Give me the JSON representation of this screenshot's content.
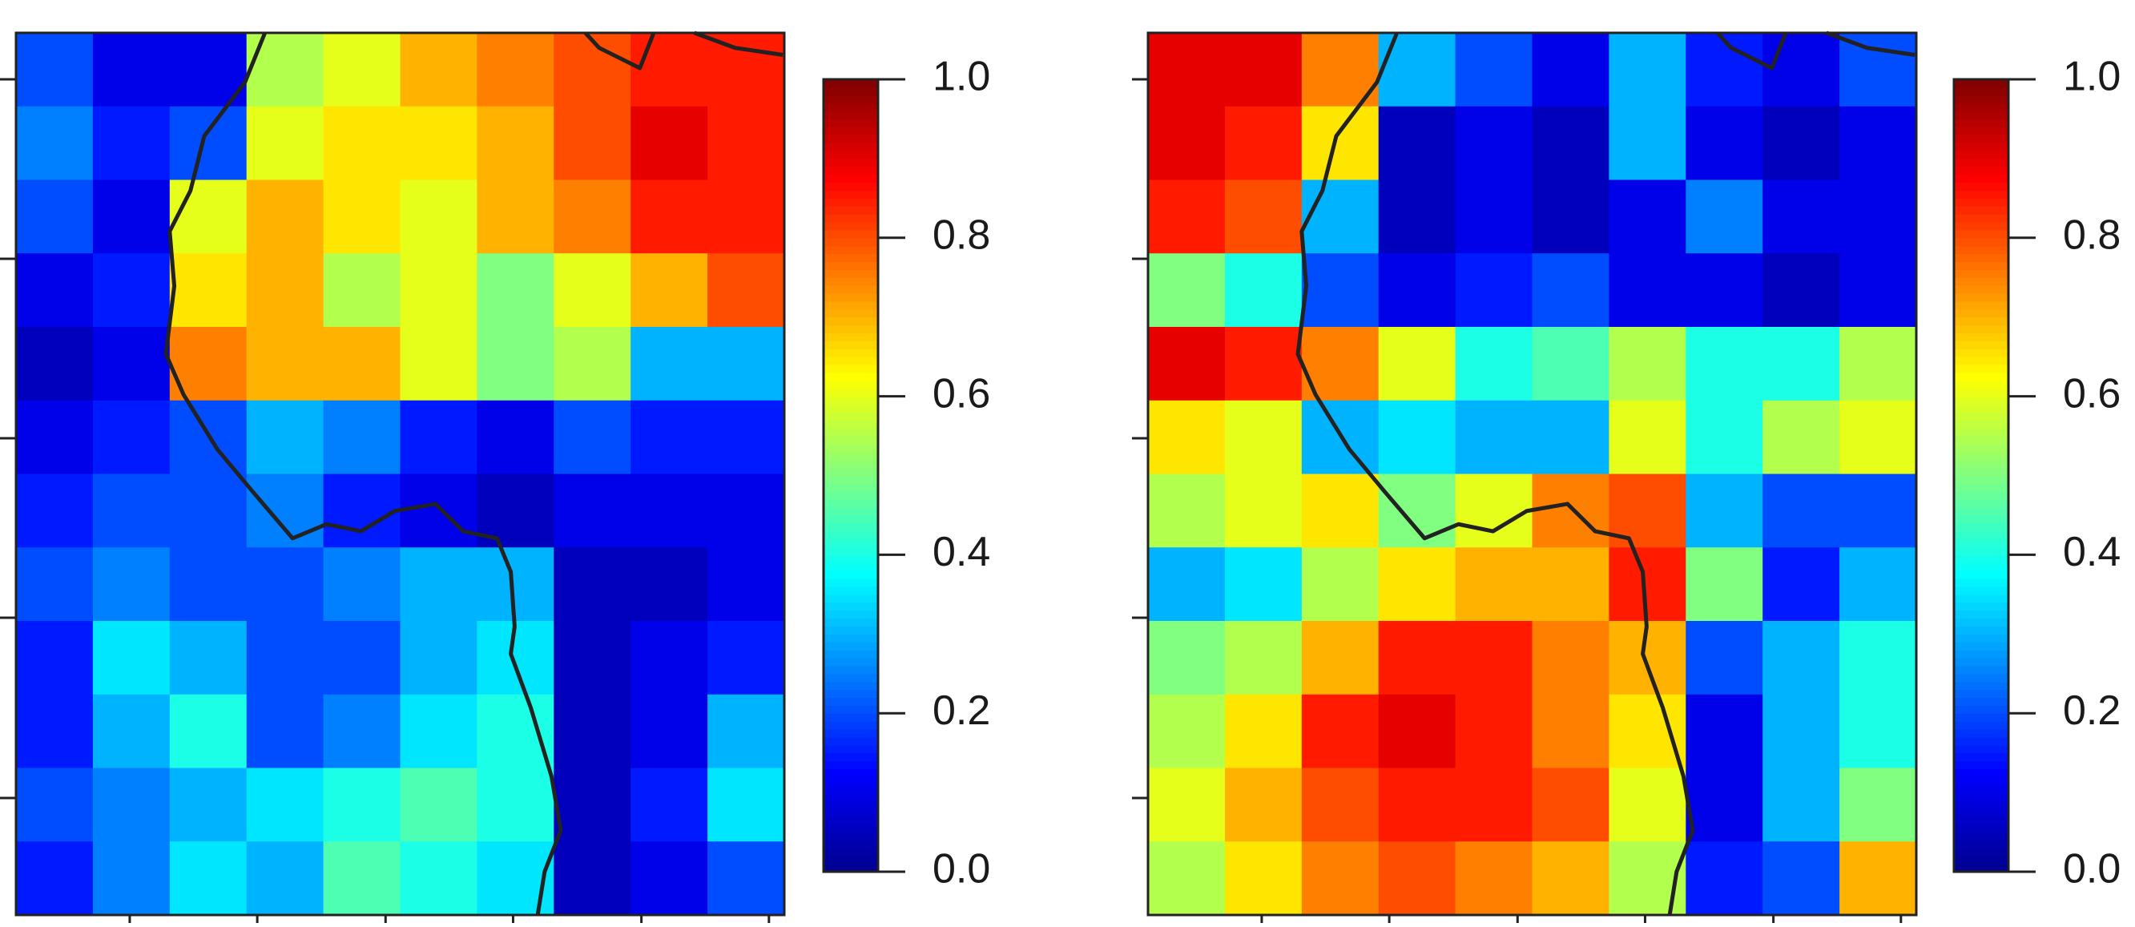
{
  "chart_data": [
    {
      "type": "heatmap",
      "zlim": [
        0,
        1
      ],
      "zticks": [
        {
          "value": 0,
          "label": "0.0"
        },
        0.2,
        0.4,
        0.6,
        0.8,
        {
          "value": 1,
          "label": "1.0"
        }
      ],
      "colors": [
        "#00008f",
        "#0000ff",
        "#0080ff",
        "#00ffff",
        "#80ff80",
        "#ffff00",
        "#ff8000",
        "#ff0000",
        "#800000"
      ],
      "values": [
        [
          0.2,
          0.1,
          0.1,
          0.55,
          0.6,
          0.7,
          0.75,
          0.8,
          0.85,
          0.85
        ],
        [
          0.25,
          0.15,
          0.2,
          0.6,
          0.65,
          0.65,
          0.7,
          0.8,
          0.9,
          0.85
        ],
        [
          0.2,
          0.1,
          0.6,
          0.7,
          0.65,
          0.6,
          0.7,
          0.75,
          0.85,
          0.85
        ],
        [
          0.1,
          0.15,
          0.65,
          0.7,
          0.55,
          0.6,
          0.5,
          0.6,
          0.7,
          0.8
        ],
        [
          0.05,
          0.1,
          0.75,
          0.7,
          0.7,
          0.6,
          0.5,
          0.55,
          0.3,
          0.3
        ],
        [
          0.1,
          0.15,
          0.2,
          0.3,
          0.25,
          0.15,
          0.1,
          0.2,
          0.15,
          0.15
        ],
        [
          0.15,
          0.2,
          0.2,
          0.25,
          0.15,
          0.1,
          0.05,
          0.1,
          0.1,
          0.1
        ],
        [
          0.2,
          0.25,
          0.2,
          0.2,
          0.25,
          0.3,
          0.3,
          0.05,
          0.05,
          0.1
        ],
        [
          0.15,
          0.35,
          0.3,
          0.2,
          0.2,
          0.3,
          0.35,
          0.05,
          0.1,
          0.15
        ],
        [
          0.15,
          0.3,
          0.4,
          0.2,
          0.25,
          0.35,
          0.4,
          0.05,
          0.1,
          0.3
        ],
        [
          0.2,
          0.25,
          0.3,
          0.35,
          0.4,
          0.45,
          0.4,
          0.05,
          0.15,
          0.35
        ],
        [
          0.15,
          0.25,
          0.35,
          0.3,
          0.45,
          0.4,
          0.35,
          0.05,
          0.1,
          0.2
        ]
      ]
    },
    {
      "type": "heatmap",
      "zlim": [
        0,
        1
      ],
      "zticks": [
        {
          "value": 0,
          "label": "0.0"
        },
        0.2,
        0.4,
        0.6,
        0.8,
        {
          "value": 1,
          "label": "1.0"
        }
      ],
      "colors": [
        "#00008f",
        "#0000ff",
        "#0080ff",
        "#00ffff",
        "#80ff80",
        "#ffff00",
        "#ff8000",
        "#ff0000",
        "#800000"
      ],
      "values": [
        [
          0.9,
          0.9,
          0.75,
          0.3,
          0.2,
          0.1,
          0.3,
          0.15,
          0.1,
          0.2
        ],
        [
          0.9,
          0.85,
          0.65,
          0.05,
          0.1,
          0.05,
          0.3,
          0.1,
          0.05,
          0.1
        ],
        [
          0.85,
          0.8,
          0.3,
          0.05,
          0.1,
          0.05,
          0.1,
          0.25,
          0.1,
          0.1
        ],
        [
          0.5,
          0.4,
          0.2,
          0.1,
          0.15,
          0.2,
          0.1,
          0.1,
          0.05,
          0.1
        ],
        [
          0.9,
          0.85,
          0.75,
          0.6,
          0.4,
          0.45,
          0.55,
          0.4,
          0.4,
          0.55
        ],
        [
          0.65,
          0.6,
          0.3,
          0.35,
          0.3,
          0.3,
          0.6,
          0.4,
          0.55,
          0.6
        ],
        [
          0.55,
          0.6,
          0.65,
          0.5,
          0.6,
          0.75,
          0.8,
          0.3,
          0.2,
          0.2
        ],
        [
          0.3,
          0.35,
          0.55,
          0.65,
          0.7,
          0.7,
          0.85,
          0.5,
          0.15,
          0.3
        ],
        [
          0.5,
          0.55,
          0.7,
          0.85,
          0.85,
          0.75,
          0.7,
          0.2,
          0.3,
          0.4
        ],
        [
          0.55,
          0.65,
          0.85,
          0.9,
          0.85,
          0.75,
          0.65,
          0.1,
          0.3,
          0.4
        ],
        [
          0.6,
          0.7,
          0.8,
          0.85,
          0.85,
          0.8,
          0.6,
          0.1,
          0.3,
          0.5
        ],
        [
          0.55,
          0.65,
          0.75,
          0.8,
          0.75,
          0.7,
          0.55,
          0.15,
          0.2,
          0.7
        ]
      ]
    }
  ]
}
